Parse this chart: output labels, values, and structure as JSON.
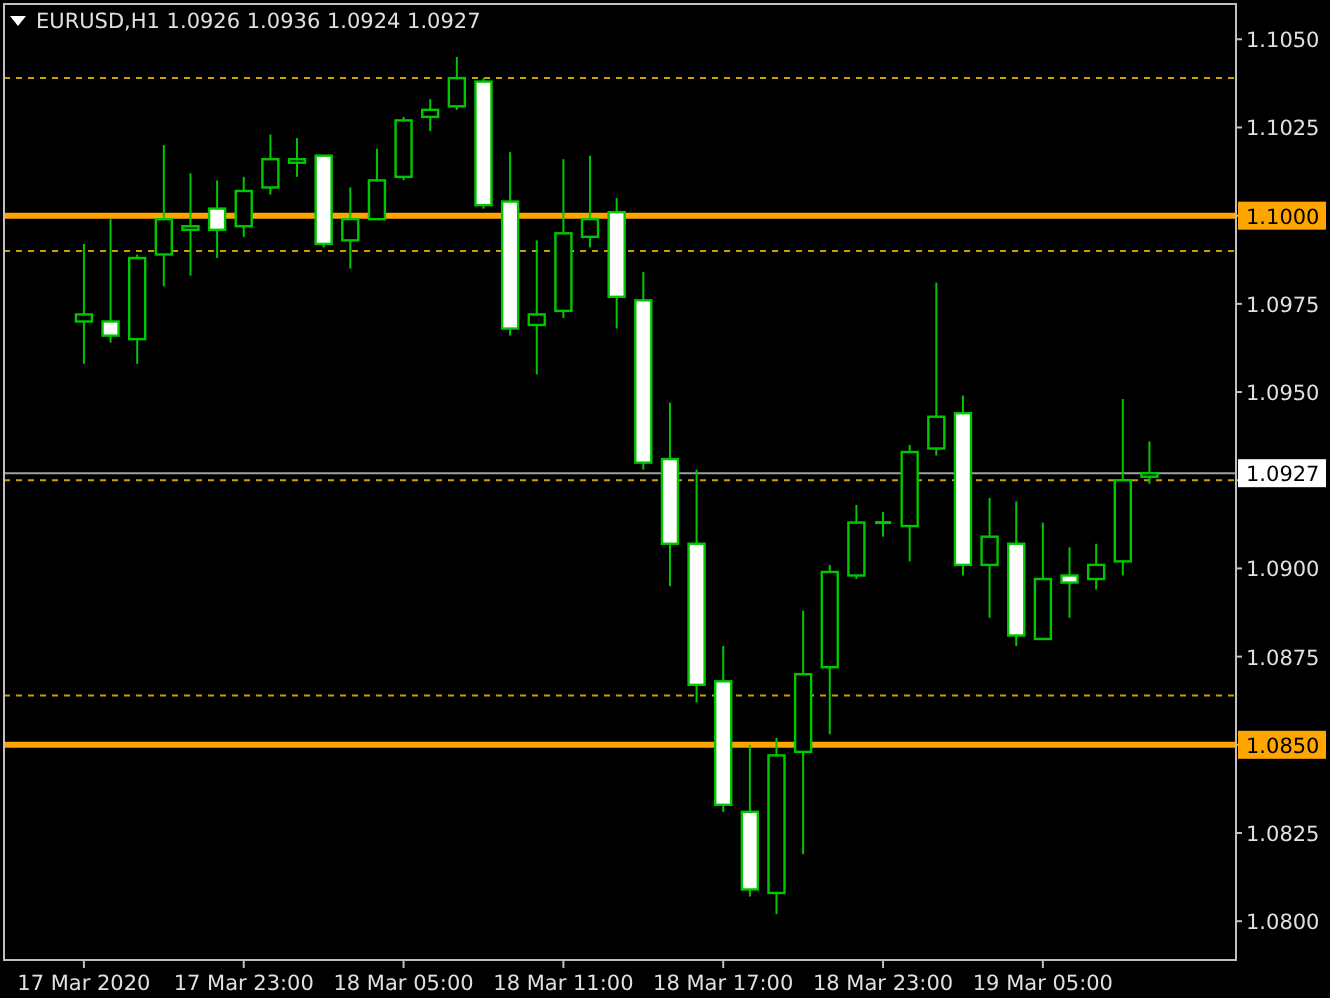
{
  "chart_data": {
    "type": "candlestick",
    "title": "EURUSD,H1  1.0926 1.0936 1.0924 1.0927",
    "x": [
      "2020-03-17T17:00",
      "2020-03-17T18:00",
      "2020-03-17T19:00",
      "2020-03-17T20:00",
      "2020-03-17T21:00",
      "2020-03-17T22:00",
      "2020-03-17T23:00",
      "2020-03-18T00:00",
      "2020-03-18T01:00",
      "2020-03-18T02:00",
      "2020-03-18T03:00",
      "2020-03-18T04:00",
      "2020-03-18T05:00",
      "2020-03-18T06:00",
      "2020-03-18T07:00",
      "2020-03-18T08:00",
      "2020-03-18T09:00",
      "2020-03-18T10:00",
      "2020-03-18T11:00",
      "2020-03-18T12:00",
      "2020-03-18T13:00",
      "2020-03-18T14:00",
      "2020-03-18T15:00",
      "2020-03-18T16:00",
      "2020-03-18T17:00",
      "2020-03-18T18:00",
      "2020-03-18T19:00",
      "2020-03-18T20:00",
      "2020-03-18T21:00",
      "2020-03-18T22:00",
      "2020-03-18T23:00",
      "2020-03-19T00:00",
      "2020-03-19T01:00",
      "2020-03-19T02:00",
      "2020-03-19T03:00",
      "2020-03-19T04:00",
      "2020-03-19T05:00",
      "2020-03-19T06:00",
      "2020-03-19T07:00",
      "2020-03-19T08:00",
      "2020-03-19T09:00"
    ],
    "xlim": [
      "2020-03-17T14:00",
      "2020-03-19T12:15"
    ],
    "xticks": [
      {
        "value": "2020-03-17T17:00",
        "label": "17 Mar 2020"
      },
      {
        "value": "2020-03-17T23:00",
        "label": "17 Mar 23:00"
      },
      {
        "value": "2020-03-18T05:00",
        "label": "18 Mar 05:00"
      },
      {
        "value": "2020-03-18T11:00",
        "label": "18 Mar 11:00"
      },
      {
        "value": "2020-03-18T17:00",
        "label": "18 Mar 17:00"
      },
      {
        "value": "2020-03-18T23:00",
        "label": "18 Mar 23:00"
      },
      {
        "value": "2020-03-19T05:00",
        "label": "19 Mar 05:00"
      }
    ],
    "ohlc": [
      [
        1.097,
        1.0992,
        1.0958,
        1.0972
      ],
      [
        1.097,
        1.0999,
        1.0964,
        1.0966
      ],
      [
        1.0965,
        1.0989,
        1.0958,
        1.0988
      ],
      [
        1.0989,
        1.102,
        1.098,
        1.0999
      ],
      [
        1.0996,
        1.1012,
        1.0983,
        1.0997
      ],
      [
        1.1002,
        1.101,
        1.0988,
        1.0996
      ],
      [
        1.0997,
        1.1011,
        1.0994,
        1.1007
      ],
      [
        1.1008,
        1.1023,
        1.1006,
        1.1016
      ],
      [
        1.1015,
        1.1022,
        1.1011,
        1.1016
      ],
      [
        1.1017,
        1.1017,
        1.0991,
        1.0992
      ],
      [
        1.0993,
        1.1008,
        1.0985,
        1.0999
      ],
      [
        1.0999,
        1.1019,
        1.0999,
        1.101
      ],
      [
        1.1011,
        1.1028,
        1.101,
        1.1027
      ],
      [
        1.1028,
        1.1033,
        1.1024,
        1.103
      ],
      [
        1.1031,
        1.1045,
        1.103,
        1.1039
      ],
      [
        1.1038,
        1.1039,
        1.1002,
        1.1003
      ],
      [
        1.1004,
        1.1018,
        1.0966,
        1.0968
      ],
      [
        1.0969,
        1.0993,
        1.0955,
        1.0972
      ],
      [
        1.0973,
        1.1016,
        1.0971,
        1.0995
      ],
      [
        1.0994,
        1.1017,
        1.0991,
        1.0999
      ],
      [
        1.1001,
        1.1005,
        1.0968,
        1.0977
      ],
      [
        1.0976,
        1.0984,
        1.0928,
        1.093
      ],
      [
        1.0931,
        1.0947,
        1.0895,
        1.0907
      ],
      [
        1.0907,
        1.0928,
        1.0862,
        1.0867
      ],
      [
        1.0868,
        1.0878,
        1.0831,
        1.0833
      ],
      [
        1.0831,
        1.085,
        1.0807,
        1.0809
      ],
      [
        1.0808,
        1.0852,
        1.0802,
        1.0847
      ],
      [
        1.0848,
        1.0888,
        1.0819,
        1.087
      ],
      [
        1.0872,
        1.0901,
        1.0853,
        1.0899
      ],
      [
        1.0898,
        1.0918,
        1.0897,
        1.0913
      ],
      [
        1.0913,
        1.0916,
        1.0909,
        1.0913
      ],
      [
        1.0912,
        1.0935,
        1.0902,
        1.0933
      ],
      [
        1.0934,
        1.0981,
        1.0932,
        1.0943
      ],
      [
        1.0944,
        1.0949,
        1.0898,
        1.0901
      ],
      [
        1.0901,
        1.092,
        1.0886,
        1.0909
      ],
      [
        1.0907,
        1.0919,
        1.0878,
        1.0881
      ],
      [
        1.088,
        1.0913,
        1.088,
        1.0897
      ],
      [
        1.0898,
        1.0906,
        1.0886,
        1.0896
      ],
      [
        1.0897,
        1.0907,
        1.0894,
        1.0901
      ],
      [
        1.0902,
        1.0948,
        1.0898,
        1.0925
      ],
      [
        1.0926,
        1.0936,
        1.0924,
        1.0927
      ]
    ],
    "color": "#00c800",
    "ylim": [
      1.0789,
      1.106
    ],
    "yticks": [
      {
        "value": 1.105,
        "label": "1.1050"
      },
      {
        "value": 1.1025,
        "label": "1.1025"
      },
      {
        "value": 1.1,
        "label": null
      },
      {
        "value": 1.0975,
        "label": "1.0975"
      },
      {
        "value": 1.095,
        "label": "1.0950"
      },
      {
        "value": 1.0925,
        "label": null
      },
      {
        "value": 1.09,
        "label": "1.0900"
      },
      {
        "value": 1.0875,
        "label": "1.0875"
      },
      {
        "value": 1.085,
        "label": null
      },
      {
        "value": 1.0825,
        "label": "1.0825"
      },
      {
        "value": 1.08,
        "label": "1.0800"
      }
    ],
    "ref_lines": [
      {
        "axis": "y",
        "value": 1.1039,
        "color": "#c8a000",
        "line_style": "dashed"
      },
      {
        "axis": "y",
        "value": 1.099,
        "color": "#c8a000",
        "line_style": "dashed"
      },
      {
        "axis": "y",
        "value": 1.0925,
        "color": "#c8a000",
        "line_style": "dashed"
      },
      {
        "axis": "y",
        "value": 1.0864,
        "color": "#c8a000",
        "line_style": "dashed"
      },
      {
        "axis": "y",
        "value": 1.1,
        "label": "1.1000",
        "color": "#ffa500",
        "line_style": "solid"
      },
      {
        "axis": "y",
        "value": 1.085,
        "label": "1.0850",
        "color": "#ffa500",
        "line_style": "solid"
      },
      {
        "axis": "y",
        "value": 1.0927,
        "label": "1.0927",
        "color": "#a0a0a0",
        "line_style": "solid"
      }
    ],
    "grid": false
  }
}
